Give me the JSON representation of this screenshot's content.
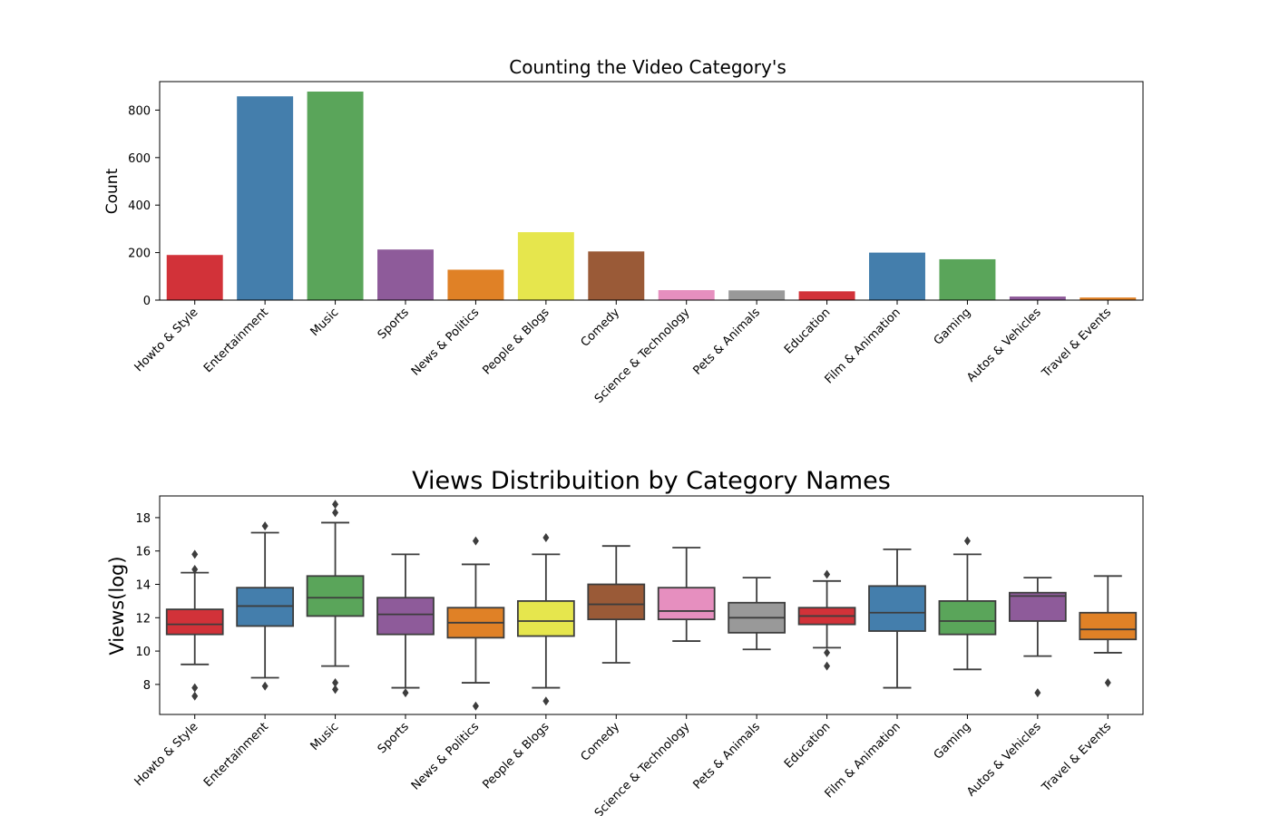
{
  "chart_data": [
    {
      "type": "bar",
      "title": "Counting the Video Category's",
      "xlabel": "",
      "ylabel": "Count",
      "ylim": [
        0,
        920
      ],
      "yticks": [
        0,
        200,
        400,
        600,
        800
      ],
      "grid": false,
      "categories": [
        "Howto & Style",
        "Entertainment",
        "Music",
        "Sports",
        "News & Politics",
        "People & Blogs",
        "Comedy",
        "Science & Technology",
        "Pets & Animals",
        "Education",
        "Film & Animation",
        "Gaming",
        "Autos & Vehicles",
        "Travel & Events"
      ],
      "values": [
        190,
        858,
        878,
        213,
        128,
        286,
        205,
        42,
        41,
        37,
        200,
        172,
        15,
        11
      ],
      "colors": [
        "#d23239",
        "#447eac",
        "#5aa55a",
        "#8e5b9a",
        "#e08126",
        "#e6e64d",
        "#9a5a37",
        "#e68fbf",
        "#999999",
        "#d23239",
        "#447eac",
        "#5aa55a",
        "#8e5b9a",
        "#e08126"
      ]
    },
    {
      "type": "box",
      "title": "Views Distribuition by Category Names",
      "xlabel": "",
      "ylabel": "Views(log)",
      "ylim": [
        6.2,
        19.3
      ],
      "yticks": [
        8,
        10,
        12,
        14,
        16,
        18
      ],
      "grid": false,
      "categories": [
        "Howto & Style",
        "Entertainment",
        "Music",
        "Sports",
        "News & Politics",
        "People & Blogs",
        "Comedy",
        "Science & Technology",
        "Pets & Animals",
        "Education",
        "Film & Animation",
        "Gaming",
        "Autos & Vehicles",
        "Travel & Events"
      ],
      "boxes": [
        {
          "whislo": 9.2,
          "q1": 11.0,
          "med": 11.6,
          "q3": 12.5,
          "whishi": 14.7,
          "fliers": [
            15.8,
            14.9,
            7.8,
            7.3
          ]
        },
        {
          "whislo": 8.4,
          "q1": 11.5,
          "med": 12.7,
          "q3": 13.8,
          "whishi": 17.1,
          "fliers": [
            17.5,
            7.9
          ]
        },
        {
          "whislo": 9.1,
          "q1": 12.1,
          "med": 13.2,
          "q3": 14.5,
          "whishi": 17.7,
          "fliers": [
            18.8,
            18.3,
            8.1,
            7.7
          ]
        },
        {
          "whislo": 7.8,
          "q1": 11.0,
          "med": 12.2,
          "q3": 13.2,
          "whishi": 15.8,
          "fliers": [
            7.5
          ]
        },
        {
          "whislo": 8.1,
          "q1": 10.8,
          "med": 11.7,
          "q3": 12.6,
          "whishi": 15.2,
          "fliers": [
            16.6,
            6.7
          ]
        },
        {
          "whislo": 7.8,
          "q1": 10.9,
          "med": 11.8,
          "q3": 13.0,
          "whishi": 15.8,
          "fliers": [
            16.8,
            7.0
          ]
        },
        {
          "whislo": 9.3,
          "q1": 11.9,
          "med": 12.8,
          "q3": 14.0,
          "whishi": 16.3,
          "fliers": []
        },
        {
          "whislo": 10.6,
          "q1": 11.9,
          "med": 12.4,
          "q3": 13.8,
          "whishi": 16.2,
          "fliers": []
        },
        {
          "whislo": 10.1,
          "q1": 11.1,
          "med": 12.0,
          "q3": 12.9,
          "whishi": 14.4,
          "fliers": []
        },
        {
          "whislo": 10.2,
          "q1": 11.6,
          "med": 12.1,
          "q3": 12.6,
          "whishi": 14.2,
          "fliers": [
            14.6,
            9.9,
            9.1
          ]
        },
        {
          "whislo": 7.8,
          "q1": 11.2,
          "med": 12.3,
          "q3": 13.9,
          "whishi": 16.1,
          "fliers": []
        },
        {
          "whislo": 8.9,
          "q1": 11.0,
          "med": 11.8,
          "q3": 13.0,
          "whishi": 15.8,
          "fliers": [
            16.6
          ]
        },
        {
          "whislo": 9.7,
          "q1": 11.8,
          "med": 13.3,
          "q3": 13.5,
          "whishi": 14.4,
          "fliers": [
            7.5
          ]
        },
        {
          "whislo": 9.9,
          "q1": 10.7,
          "med": 11.3,
          "q3": 12.3,
          "whishi": 14.5,
          "fliers": [
            8.1
          ]
        }
      ],
      "colors": [
        "#d23239",
        "#447eac",
        "#5aa55a",
        "#8e5b9a",
        "#e08126",
        "#e6e64d",
        "#9a5a37",
        "#e68fbf",
        "#999999",
        "#d23239",
        "#447eac",
        "#5aa55a",
        "#8e5b9a",
        "#e08126"
      ]
    }
  ]
}
